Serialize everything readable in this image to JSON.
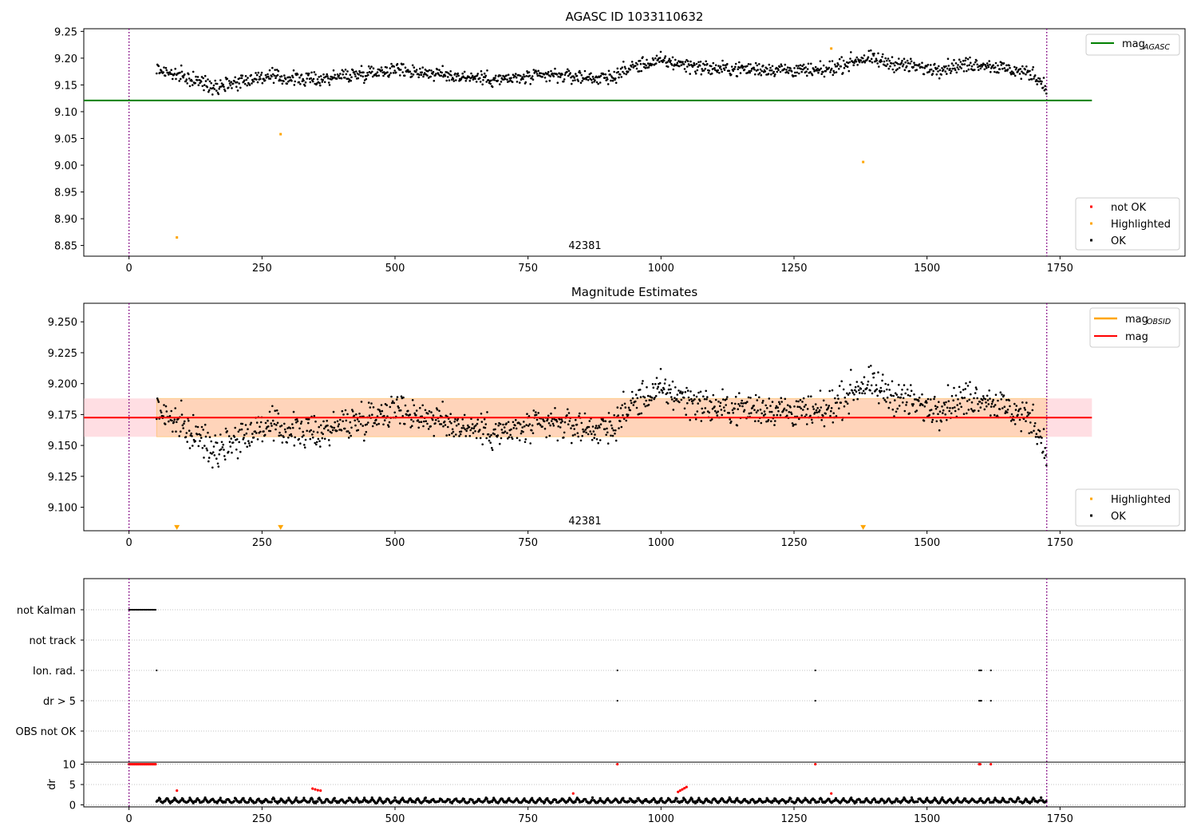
{
  "chart_data": [
    {
      "type": "scatter",
      "title": "AGASC ID 1033110632",
      "xlim": [
        -85,
        1985
      ],
      "ylim": [
        8.83,
        9.255
      ],
      "xticks": [
        0,
        250,
        500,
        750,
        1000,
        1250,
        1500,
        1750
      ],
      "yticks": [
        8.85,
        8.9,
        8.95,
        9.0,
        9.05,
        9.1,
        9.15,
        9.2,
        9.25
      ],
      "grid": false,
      "annotation": "42381",
      "obs_boundaries": [
        0,
        1725
      ],
      "reference_line": {
        "name": "mag",
        "subscript": "AGASC",
        "value": 9.121,
        "x_range": [
          -85,
          1810
        ],
        "color": "#008000"
      },
      "legend_top": {
        "placement": "top-right",
        "entries": [
          {
            "label": "mag",
            "subscript": "AGASC",
            "color": "#008000"
          }
        ]
      },
      "legend_bottom": {
        "placement": "bottom-right",
        "entries": [
          {
            "label": "not OK",
            "color": "#ff0000"
          },
          {
            "label": "Highlighted",
            "color": "#ffa500"
          },
          {
            "label": "OK",
            "color": "#000000"
          }
        ]
      },
      "series": [
        {
          "name": "OK",
          "color": "#000000",
          "x_range": [
            52,
            1725
          ],
          "trend_x": [
            52,
            100,
            160,
            250,
            350,
            500,
            600,
            700,
            800,
            900,
            950,
            1000,
            1100,
            1200,
            1300,
            1380,
            1500,
            1600,
            1700,
            1725
          ],
          "trend_y": [
            9.18,
            9.165,
            9.148,
            9.165,
            9.16,
            9.18,
            9.168,
            9.16,
            9.168,
            9.162,
            9.185,
            9.195,
            9.18,
            9.18,
            9.175,
            9.2,
            9.18,
            9.19,
            9.17,
            9.145
          ],
          "spread": 0.012
        },
        {
          "name": "Highlighted",
          "color": "#ffa500",
          "points": [
            [
              90,
              8.865
            ],
            [
              285,
              9.058
            ],
            [
              1320,
              9.218
            ],
            [
              1380,
              9.006
            ]
          ]
        }
      ]
    },
    {
      "type": "scatter",
      "title": "Magnitude Estimates",
      "xlim": [
        -85,
        1985
      ],
      "ylim": [
        9.081,
        9.265
      ],
      "xticks": [
        0,
        250,
        500,
        750,
        1000,
        1250,
        1500,
        1750
      ],
      "yticks": [
        9.1,
        9.125,
        9.15,
        9.175,
        9.2,
        9.225,
        9.25
      ],
      "grid": false,
      "annotation": "42381",
      "obs_boundaries": [
        0,
        1725
      ],
      "reference_line": {
        "name": "mag",
        "value": 9.1725,
        "x_range": [
          -85,
          1810
        ],
        "color": "#ff0000"
      },
      "band": {
        "y_range": [
          9.157,
          9.188
        ],
        "x_range": [
          -85,
          1810
        ],
        "color": "#ffb6c1"
      },
      "obsid_band": {
        "y_range": [
          9.157,
          9.188
        ],
        "x_range": [
          52,
          1725
        ],
        "color": "#ffa500"
      },
      "legend_top": {
        "placement": "top-right",
        "entries": [
          {
            "label": "mag",
            "subscript": "OBSID",
            "color": "#ffa500"
          },
          {
            "label": "mag",
            "color": "#ff0000"
          }
        ]
      },
      "legend_bottom": {
        "placement": "bottom-right",
        "entries": [
          {
            "label": "Highlighted",
            "color": "#ffa500"
          },
          {
            "label": "OK",
            "color": "#000000"
          }
        ]
      },
      "series": [
        {
          "name": "OK",
          "color": "#000000",
          "x_range": [
            52,
            1725
          ],
          "trend_x": [
            52,
            100,
            160,
            250,
            350,
            500,
            600,
            700,
            800,
            900,
            950,
            1000,
            1100,
            1200,
            1300,
            1380,
            1500,
            1600,
            1700,
            1725
          ],
          "trend_y": [
            9.18,
            9.165,
            9.148,
            9.165,
            9.16,
            9.18,
            9.168,
            9.16,
            9.168,
            9.162,
            9.185,
            9.195,
            9.18,
            9.18,
            9.175,
            9.2,
            9.18,
            9.19,
            9.17,
            9.145
          ],
          "spread": 0.012
        },
        {
          "name": "Highlighted",
          "color": "#ffa500",
          "marker": "triangle-down",
          "points": [
            [
              90,
              9.083
            ],
            [
              285,
              9.083
            ],
            [
              1380,
              9.083
            ]
          ]
        }
      ]
    },
    {
      "type": "scatter",
      "xlim": [
        -85,
        1985
      ],
      "xticks": [
        0,
        250,
        500,
        750,
        1000,
        1250,
        1500,
        1750
      ],
      "obs_boundaries": [
        0,
        1725
      ],
      "flag_rows": [
        {
          "label": "not Kalman",
          "segments": [
            [
              0,
              52
            ]
          ],
          "points": []
        },
        {
          "label": "not track",
          "segments": [],
          "points": []
        },
        {
          "label": "Ion. rad.",
          "segments": [],
          "points": [
            52,
            918,
            1290,
            1598,
            1600,
            1602,
            1620
          ]
        },
        {
          "label": "dr > 5",
          "segments": [],
          "points": [
            918,
            1290,
            1598,
            1600,
            1602,
            1620
          ]
        },
        {
          "label": "OBS not OK",
          "segments": [],
          "points": []
        }
      ],
      "dr_panel": {
        "ylabel": "dr",
        "ylim": [
          -0.5,
          10.5
        ],
        "yticks": [
          0,
          5,
          10
        ],
        "grid": true,
        "not_ok_high": {
          "segments": [
            [
              0,
              52
            ]
          ],
          "points": [
            918,
            1290,
            1598,
            1600,
            1620
          ],
          "value": 10
        },
        "not_ok_low": [
          [
            90,
            3.5
          ],
          [
            345,
            4.0
          ],
          [
            350,
            3.8
          ],
          [
            355,
            3.6
          ],
          [
            360,
            3.5
          ],
          [
            835,
            2.8
          ],
          [
            1032,
            3.2
          ],
          [
            1036,
            3.5
          ],
          [
            1040,
            3.8
          ],
          [
            1044,
            4.1
          ],
          [
            1048,
            4.4
          ],
          [
            1320,
            2.8
          ]
        ],
        "ok_x_range": [
          52,
          1725
        ]
      }
    }
  ]
}
